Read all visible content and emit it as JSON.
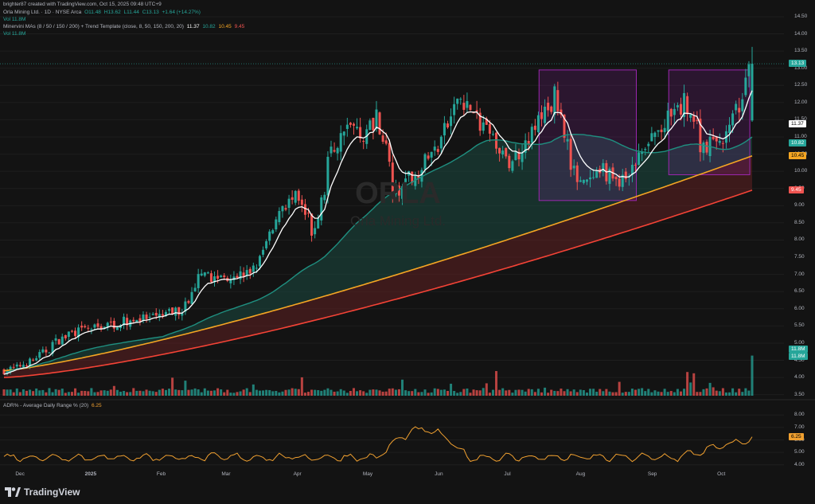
{
  "header": {
    "credit": "brighter87 created with TradingView.com, Oct 15, 2025 09:48 UTC+9",
    "symbol_line": "Orla Mining Ltd. · 1D · NYSE Arca",
    "ohlc": {
      "o": "O11.48",
      "h": "H13.62",
      "l": "L11.44",
      "c": "C13.13",
      "chg": "+1.64 (+14.27%)",
      "chg2": "+1.64 (+14.27%)"
    },
    "vol1": "Vol  11.8M",
    "ma_label": "Minervini MAs (8 / 50 / 150 / 200) + Trend Template (close, 8, 50, 150, 200, 20)",
    "ma_values": [
      "11.37",
      "10.82",
      "10.45",
      "9.45"
    ],
    "vol2": "Vol  11.8M",
    "adr_label": "ADR% - Average Daily Range % (20)",
    "adr_value": "6.25"
  },
  "watermark": {
    "ticker": "ORLA",
    "name": "Orla Mining Ltd."
  },
  "brand": {
    "name": "TradingView"
  },
  "colors": {
    "up": "#26a69a",
    "down": "#ef5350",
    "ma8": "#ffffff",
    "ma50": "#1f8f80",
    "ma150": "#f5a623",
    "ma200": "#f44336",
    "adr": "#f0a030",
    "box": "#9c27b0"
  },
  "chart_data": [
    {
      "type": "candlestick",
      "title": "Orla Mining Ltd. · 1D · NYSE Arca",
      "y_ticks": [
        "14.50",
        "14.00",
        "13.50",
        "13.00",
        "12.50",
        "12.00",
        "11.50",
        "11.00",
        "10.50",
        "10.00",
        "9.50",
        "9.00",
        "8.50",
        "8.00",
        "7.50",
        "7.00",
        "6.50",
        "6.00",
        "5.50",
        "5.00",
        "4.50",
        "4.00",
        "3.50"
      ],
      "x_ticks": [
        "Dec",
        "2025",
        "Feb",
        "Mar",
        "Apr",
        "May",
        "Jun",
        "Jul",
        "Aug",
        "Sep",
        "Oct"
      ],
      "ylim": [
        3.4,
        14.8
      ],
      "close_path": [
        [
          "2024-11-25",
          4.2
        ],
        [
          "2024-12-02",
          4.35
        ],
        [
          "2024-12-09",
          4.6
        ],
        [
          "2024-12-16",
          5.0
        ],
        [
          "2024-12-23",
          5.3
        ],
        [
          "2024-12-30",
          5.4
        ],
        [
          "2025-01-06",
          5.5
        ],
        [
          "2025-01-13",
          5.6
        ],
        [
          "2025-01-20",
          5.7
        ],
        [
          "2025-01-27",
          5.7
        ],
        [
          "2025-02-03",
          5.85
        ],
        [
          "2025-02-10",
          6.0
        ],
        [
          "2025-02-17",
          6.9
        ],
        [
          "2025-02-24",
          6.9
        ],
        [
          "2025-03-03",
          7.0
        ],
        [
          "2025-03-10",
          7.0
        ],
        [
          "2025-03-17",
          7.7
        ],
        [
          "2025-03-24",
          9.0
        ],
        [
          "2025-03-31",
          9.2
        ],
        [
          "2025-04-07",
          8.1
        ],
        [
          "2025-04-14",
          10.4
        ],
        [
          "2025-04-21",
          11.4
        ],
        [
          "2025-04-28",
          11.0
        ],
        [
          "2025-05-05",
          11.7
        ],
        [
          "2025-05-12",
          9.3
        ],
        [
          "2025-05-19",
          9.8
        ],
        [
          "2025-05-26",
          10.3
        ],
        [
          "2025-06-02",
          11.0
        ],
        [
          "2025-06-09",
          12.2
        ],
        [
          "2025-06-16",
          11.6
        ],
        [
          "2025-06-23",
          11.0
        ],
        [
          "2025-06-30",
          10.2
        ],
        [
          "2025-07-07",
          10.8
        ],
        [
          "2025-07-14",
          11.5
        ],
        [
          "2025-07-21",
          12.2
        ],
        [
          "2025-07-28",
          10.0
        ],
        [
          "2025-08-04",
          9.6
        ],
        [
          "2025-08-11",
          10.0
        ],
        [
          "2025-08-18",
          9.6
        ],
        [
          "2025-08-25",
          10.3
        ],
        [
          "2025-09-01",
          11.0
        ],
        [
          "2025-09-08",
          11.5
        ],
        [
          "2025-09-15",
          12.0
        ],
        [
          "2025-09-22",
          10.8
        ],
        [
          "2025-09-29",
          10.8
        ],
        [
          "2025-10-06",
          11.5
        ],
        [
          "2025-10-13",
          13.13
        ]
      ],
      "series": [
        {
          "name": "MA 8",
          "last": 11.37
        },
        {
          "name": "MA 50",
          "last": 10.82
        },
        {
          "name": "MA 150",
          "last": 10.45
        },
        {
          "name": "MA 200",
          "last": 9.45
        }
      ],
      "price_badges": [
        "13.13",
        "11.37",
        "10.82",
        "10.45",
        "9.45"
      ],
      "volume_badges": [
        "11.8M",
        "11.8M"
      ],
      "annotations": [
        {
          "type": "box",
          "from": "2025-07-14",
          "to": "2025-08-25",
          "low": 9.15,
          "high": 12.95
        },
        {
          "type": "box",
          "from": "2025-09-08",
          "to": "2025-10-13",
          "low": 9.9,
          "high": 12.95
        }
      ]
    },
    {
      "type": "line",
      "title": "ADR% - Average Daily Range % (20)",
      "y_ticks": [
        "8.00",
        "7.00",
        "6.00",
        "5.00",
        "4.00"
      ],
      "ylim": [
        3.6,
        8.4
      ],
      "last": 6.25,
      "badge": "6.25"
    }
  ]
}
